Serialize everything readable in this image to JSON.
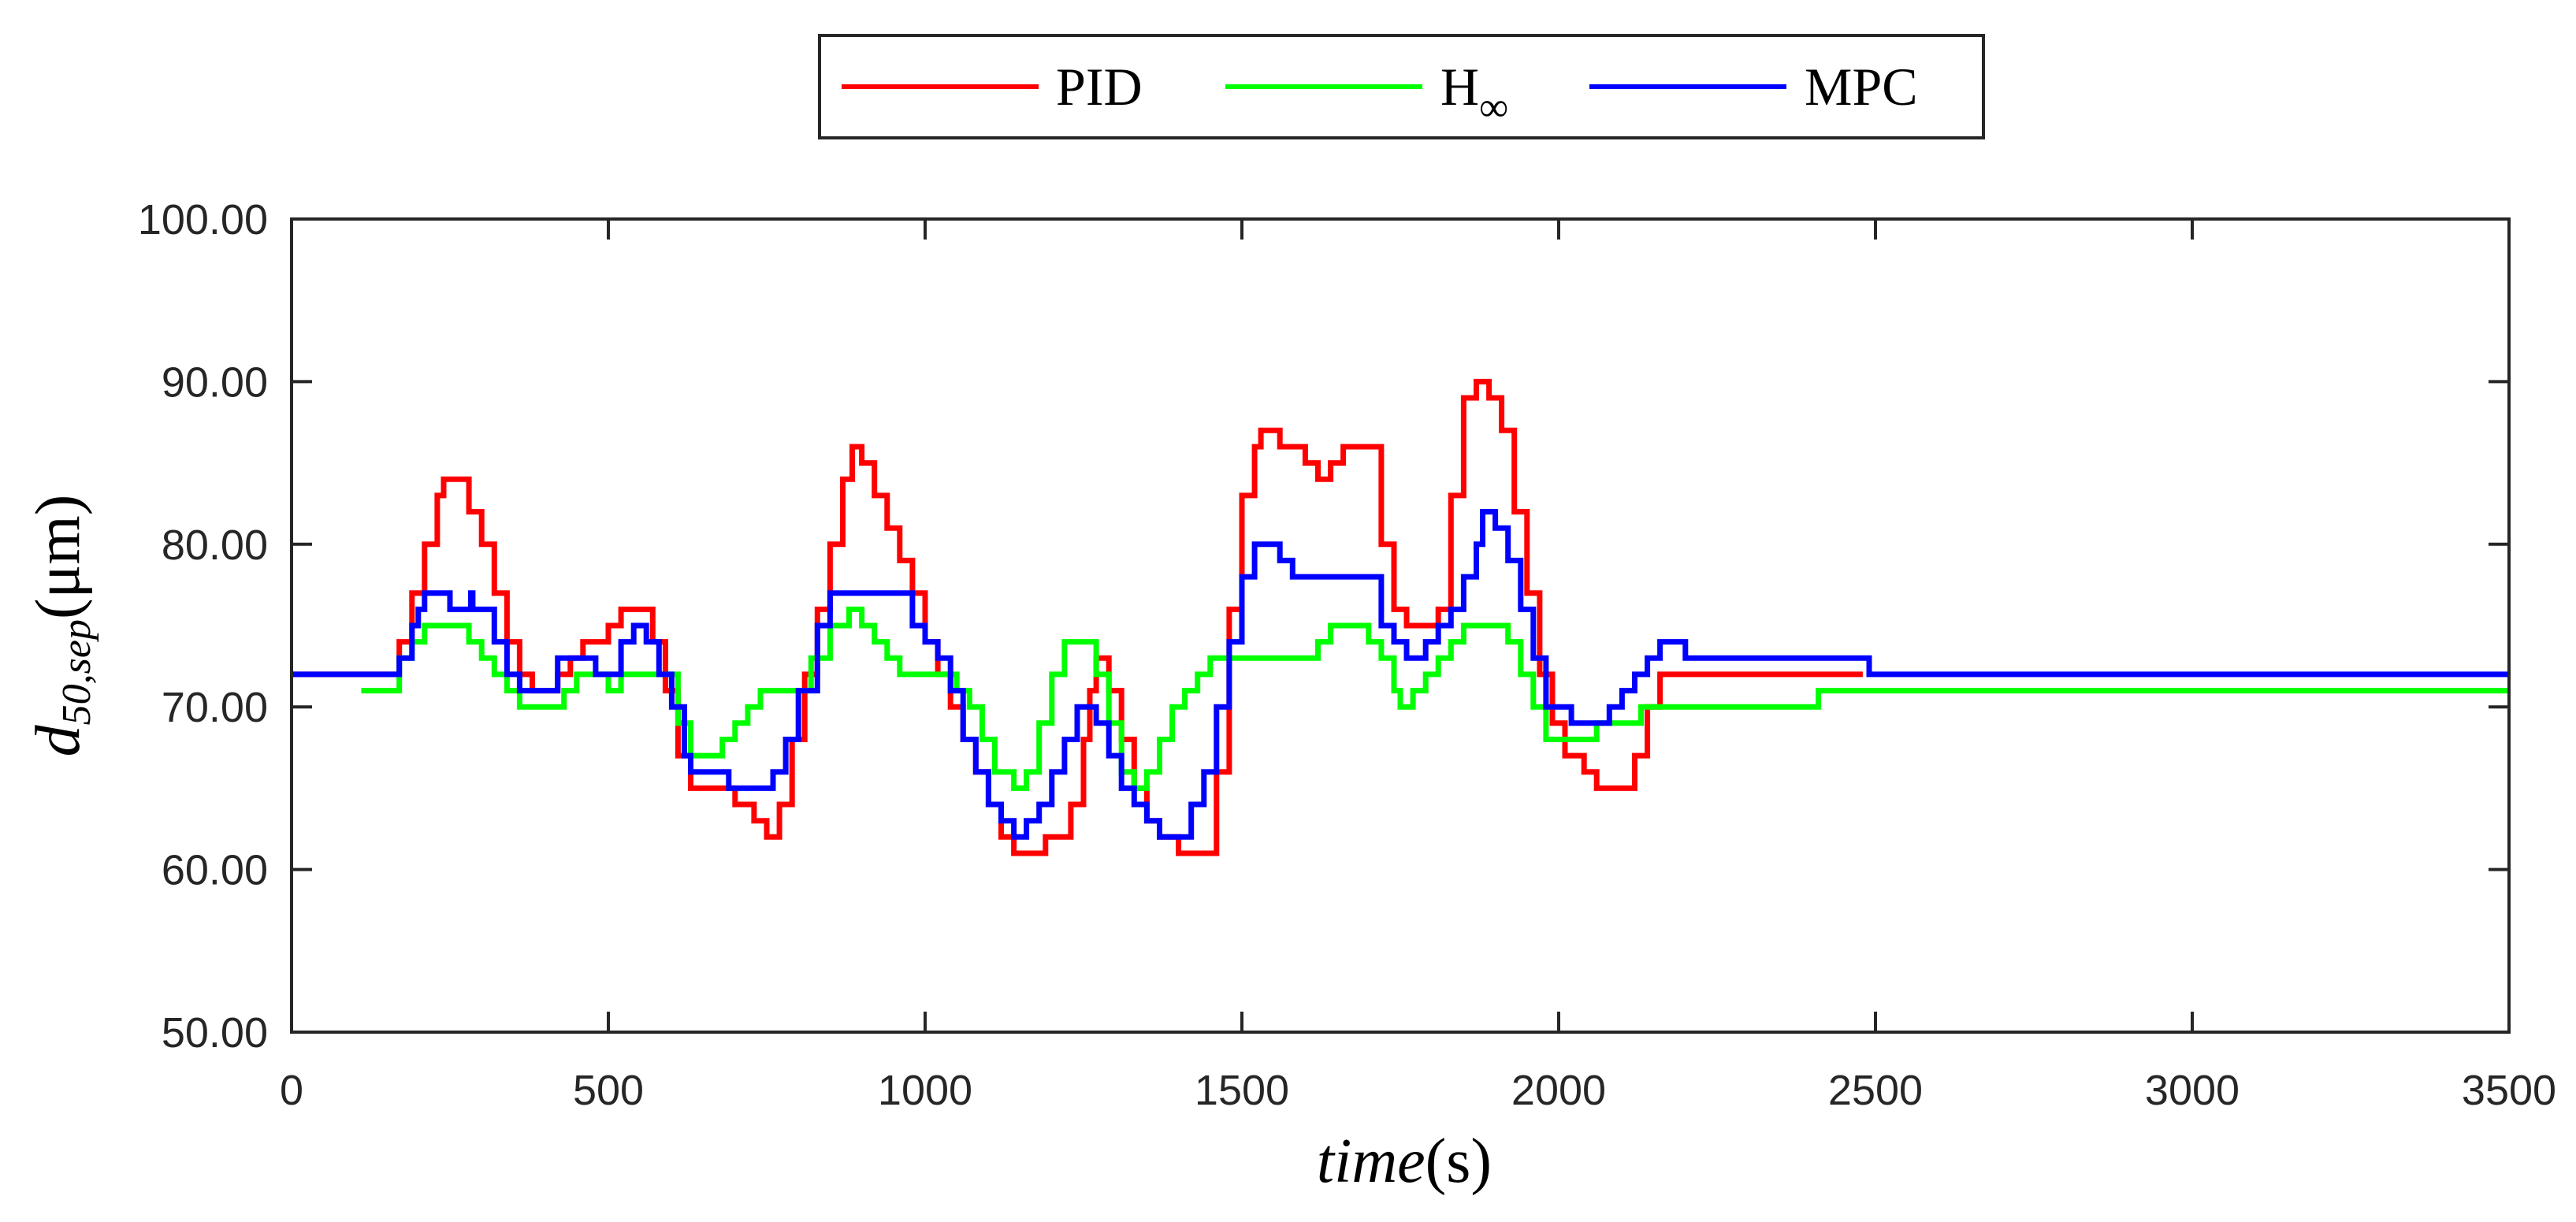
{
  "chart_data": {
    "type": "line",
    "title": "",
    "xlabel": {
      "main": "time",
      "unit": "(s)"
    },
    "ylabel": {
      "main": "d",
      "subscript": "50,sep",
      "unit": "(μm)"
    },
    "xlim": [
      0,
      3500
    ],
    "ylim": [
      50,
      100
    ],
    "x_ticks": [
      0,
      500,
      1000,
      1500,
      2000,
      2500,
      3000,
      3500
    ],
    "x_tick_labels": [
      "0",
      "500",
      "1000",
      "1500",
      "2000",
      "2500",
      "3000",
      "3500"
    ],
    "y_ticks": [
      50,
      60,
      70,
      80,
      90,
      100
    ],
    "y_tick_labels": [
      "50.00",
      "60.00",
      "70.00",
      "80.00",
      "90.00",
      "100.00"
    ],
    "grid": false,
    "legend": {
      "placement": "top-center, outside plot",
      "orientation": "horizontal"
    },
    "series": [
      {
        "name": "PID",
        "label_main": "PID",
        "label_sub": "",
        "color": "#ff0000",
        "points": [
          [
            0,
            72
          ],
          [
            150,
            72
          ],
          [
            170,
            74
          ],
          [
            190,
            77
          ],
          [
            210,
            80
          ],
          [
            230,
            83
          ],
          [
            240,
            84
          ],
          [
            260,
            84
          ],
          [
            280,
            82
          ],
          [
            300,
            80
          ],
          [
            320,
            77
          ],
          [
            340,
            74
          ],
          [
            360,
            72
          ],
          [
            380,
            71
          ],
          [
            400,
            71
          ],
          [
            420,
            72
          ],
          [
            440,
            73
          ],
          [
            460,
            74
          ],
          [
            480,
            74
          ],
          [
            500,
            75
          ],
          [
            520,
            76
          ],
          [
            550,
            76
          ],
          [
            570,
            74
          ],
          [
            590,
            71
          ],
          [
            610,
            67
          ],
          [
            630,
            65
          ],
          [
            680,
            65
          ],
          [
            700,
            64
          ],
          [
            730,
            63
          ],
          [
            750,
            62
          ],
          [
            770,
            64
          ],
          [
            790,
            68
          ],
          [
            810,
            72
          ],
          [
            830,
            76
          ],
          [
            850,
            80
          ],
          [
            870,
            84
          ],
          [
            885,
            86
          ],
          [
            900,
            85
          ],
          [
            920,
            83
          ],
          [
            940,
            81
          ],
          [
            960,
            79
          ],
          [
            980,
            77
          ],
          [
            1000,
            74
          ],
          [
            1020,
            72
          ],
          [
            1040,
            70
          ],
          [
            1060,
            68
          ],
          [
            1080,
            66
          ],
          [
            1100,
            64
          ],
          [
            1120,
            62
          ],
          [
            1140,
            61
          ],
          [
            1170,
            61
          ],
          [
            1190,
            62
          ],
          [
            1210,
            62
          ],
          [
            1230,
            64
          ],
          [
            1250,
            68
          ],
          [
            1260,
            71
          ],
          [
            1270,
            73
          ],
          [
            1290,
            71
          ],
          [
            1310,
            68
          ],
          [
            1330,
            65
          ],
          [
            1350,
            63
          ],
          [
            1370,
            62
          ],
          [
            1400,
            61
          ],
          [
            1440,
            61
          ],
          [
            1460,
            66
          ],
          [
            1480,
            76
          ],
          [
            1500,
            83
          ],
          [
            1520,
            86
          ],
          [
            1530,
            87
          ],
          [
            1560,
            86
          ],
          [
            1600,
            85
          ],
          [
            1620,
            84
          ],
          [
            1640,
            85
          ],
          [
            1660,
            86
          ],
          [
            1690,
            86
          ],
          [
            1720,
            80
          ],
          [
            1740,
            76
          ],
          [
            1760,
            75
          ],
          [
            1790,
            75
          ],
          [
            1810,
            76
          ],
          [
            1830,
            83
          ],
          [
            1850,
            89
          ],
          [
            1870,
            90
          ],
          [
            1890,
            89
          ],
          [
            1910,
            87
          ],
          [
            1930,
            82
          ],
          [
            1950,
            77
          ],
          [
            1970,
            72
          ],
          [
            1990,
            69
          ],
          [
            2010,
            67
          ],
          [
            2040,
            66
          ],
          [
            2060,
            65
          ],
          [
            2100,
            65
          ],
          [
            2120,
            67
          ],
          [
            2140,
            70
          ],
          [
            2160,
            72
          ],
          [
            2480,
            72
          ]
        ]
      },
      {
        "name": "H∞",
        "label_main": "H",
        "label_sub": "∞",
        "color": "#00ff00",
        "points": [
          [
            110,
            71
          ],
          [
            150,
            71
          ],
          [
            170,
            73
          ],
          [
            190,
            74
          ],
          [
            210,
            75
          ],
          [
            260,
            75
          ],
          [
            280,
            74
          ],
          [
            300,
            73
          ],
          [
            320,
            72
          ],
          [
            340,
            71
          ],
          [
            360,
            70
          ],
          [
            410,
            70
          ],
          [
            430,
            71
          ],
          [
            450,
            72
          ],
          [
            480,
            72
          ],
          [
            500,
            71
          ],
          [
            520,
            72
          ],
          [
            590,
            72
          ],
          [
            610,
            69
          ],
          [
            630,
            67
          ],
          [
            660,
            67
          ],
          [
            680,
            68
          ],
          [
            700,
            69
          ],
          [
            720,
            70
          ],
          [
            740,
            71
          ],
          [
            800,
            71
          ],
          [
            820,
            73
          ],
          [
            850,
            75
          ],
          [
            880,
            76
          ],
          [
            900,
            75
          ],
          [
            920,
            74
          ],
          [
            940,
            73
          ],
          [
            960,
            72
          ],
          [
            1030,
            72
          ],
          [
            1050,
            71
          ],
          [
            1070,
            70
          ],
          [
            1090,
            68
          ],
          [
            1110,
            66
          ],
          [
            1140,
            65
          ],
          [
            1160,
            66
          ],
          [
            1180,
            69
          ],
          [
            1200,
            72
          ],
          [
            1220,
            74
          ],
          [
            1250,
            74
          ],
          [
            1270,
            72
          ],
          [
            1290,
            69
          ],
          [
            1310,
            66
          ],
          [
            1330,
            65
          ],
          [
            1350,
            66
          ],
          [
            1370,
            68
          ],
          [
            1390,
            70
          ],
          [
            1410,
            71
          ],
          [
            1430,
            72
          ],
          [
            1450,
            73
          ],
          [
            1480,
            73
          ],
          [
            1500,
            73
          ],
          [
            1590,
            73
          ],
          [
            1620,
            74
          ],
          [
            1640,
            75
          ],
          [
            1680,
            75
          ],
          [
            1700,
            74
          ],
          [
            1720,
            73
          ],
          [
            1740,
            71
          ],
          [
            1750,
            70
          ],
          [
            1770,
            71
          ],
          [
            1790,
            72
          ],
          [
            1810,
            73
          ],
          [
            1830,
            74
          ],
          [
            1850,
            75
          ],
          [
            1900,
            75
          ],
          [
            1920,
            74
          ],
          [
            1940,
            72
          ],
          [
            1960,
            70
          ],
          [
            1980,
            68
          ],
          [
            2000,
            68
          ],
          [
            2040,
            68
          ],
          [
            2060,
            69
          ],
          [
            2120,
            69
          ],
          [
            2130,
            70
          ],
          [
            2400,
            70
          ],
          [
            2410,
            71
          ],
          [
            3500,
            71
          ]
        ]
      },
      {
        "name": "MPC",
        "label_main": "MPC",
        "label_sub": "",
        "color": "#0000ff",
        "points": [
          [
            0,
            72
          ],
          [
            150,
            72
          ],
          [
            170,
            73
          ],
          [
            190,
            75
          ],
          [
            200,
            76
          ],
          [
            210,
            77
          ],
          [
            240,
            77
          ],
          [
            250,
            76
          ],
          [
            280,
            76
          ],
          [
            283,
            77
          ],
          [
            286,
            76
          ],
          [
            300,
            76
          ],
          [
            320,
            74
          ],
          [
            340,
            72
          ],
          [
            360,
            71
          ],
          [
            400,
            71
          ],
          [
            420,
            73
          ],
          [
            460,
            73
          ],
          [
            480,
            72
          ],
          [
            500,
            72
          ],
          [
            520,
            74
          ],
          [
            540,
            75
          ],
          [
            560,
            74
          ],
          [
            580,
            72
          ],
          [
            600,
            70
          ],
          [
            620,
            67
          ],
          [
            630,
            66
          ],
          [
            680,
            66
          ],
          [
            690,
            65
          ],
          [
            740,
            65
          ],
          [
            760,
            66
          ],
          [
            780,
            68
          ],
          [
            800,
            71
          ],
          [
            830,
            75
          ],
          [
            850,
            77
          ],
          [
            960,
            77
          ],
          [
            980,
            75
          ],
          [
            1000,
            74
          ],
          [
            1020,
            73
          ],
          [
            1040,
            71
          ],
          [
            1060,
            68
          ],
          [
            1080,
            66
          ],
          [
            1100,
            64
          ],
          [
            1120,
            63
          ],
          [
            1140,
            62
          ],
          [
            1160,
            63
          ],
          [
            1180,
            64
          ],
          [
            1200,
            66
          ],
          [
            1220,
            68
          ],
          [
            1240,
            70
          ],
          [
            1260,
            70
          ],
          [
            1270,
            69
          ],
          [
            1290,
            67
          ],
          [
            1310,
            65
          ],
          [
            1330,
            64
          ],
          [
            1350,
            63
          ],
          [
            1370,
            62
          ],
          [
            1400,
            62
          ],
          [
            1420,
            64
          ],
          [
            1440,
            66
          ],
          [
            1460,
            70
          ],
          [
            1480,
            74
          ],
          [
            1500,
            78
          ],
          [
            1520,
            80
          ],
          [
            1540,
            80
          ],
          [
            1560,
            79
          ],
          [
            1580,
            78
          ],
          [
            1700,
            78
          ],
          [
            1720,
            75
          ],
          [
            1740,
            74
          ],
          [
            1760,
            73
          ],
          [
            1790,
            74
          ],
          [
            1810,
            75
          ],
          [
            1830,
            76
          ],
          [
            1850,
            78
          ],
          [
            1870,
            80
          ],
          [
            1880,
            82
          ],
          [
            1900,
            81
          ],
          [
            1920,
            79
          ],
          [
            1940,
            76
          ],
          [
            1960,
            73
          ],
          [
            1980,
            70
          ],
          [
            2000,
            70
          ],
          [
            2020,
            69
          ],
          [
            2060,
            69
          ],
          [
            2080,
            70
          ],
          [
            2100,
            71
          ],
          [
            2120,
            72
          ],
          [
            2140,
            73
          ],
          [
            2160,
            74
          ],
          [
            2190,
            74
          ],
          [
            2200,
            73
          ],
          [
            2480,
            73
          ],
          [
            2490,
            72
          ],
          [
            3500,
            72
          ]
        ]
      }
    ]
  }
}
